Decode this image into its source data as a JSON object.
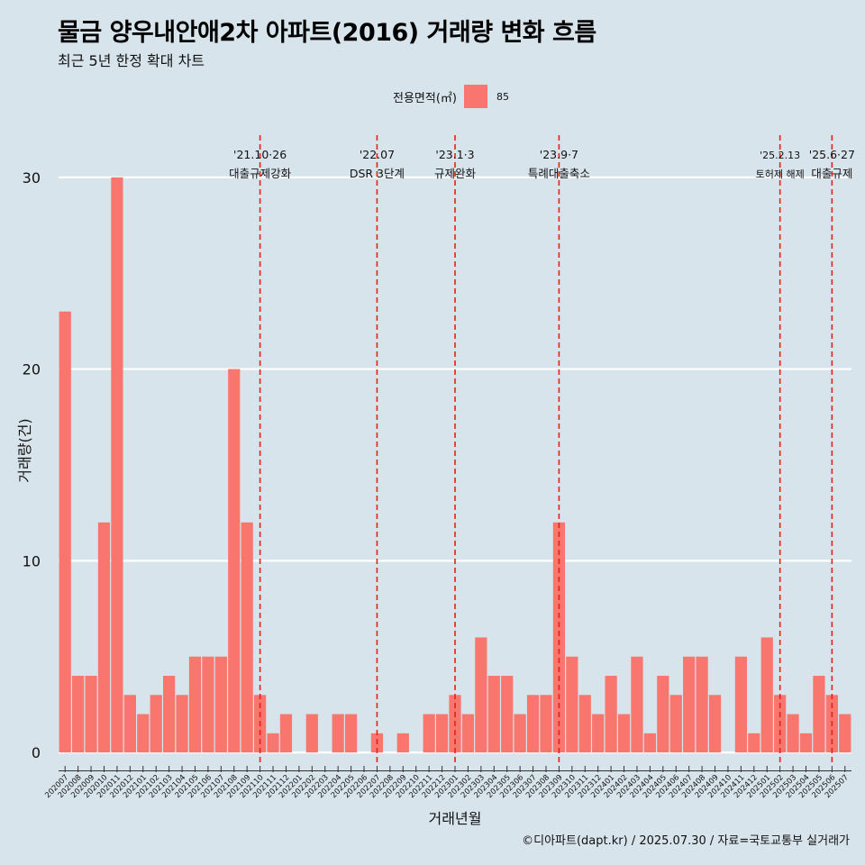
{
  "title": "물금 양우내안애2차 아파트(2016) 거래량 변화 흐름",
  "subtitle": "최근 5년 한정 확대 차트",
  "caption": "©디아파트(dapt.kr) / 2025.07.30 / 자료=국토교통부 실거래가",
  "legend": {
    "title": "전용면적(㎡)",
    "label": "85"
  },
  "colors": {
    "bar": "#f8766d",
    "background": "#d7e4ec",
    "grid": "#ffffff",
    "event_line": "#e8201a"
  },
  "chart_data": {
    "type": "bar",
    "xlabel": "거래년월",
    "ylabel": "거래량(건)",
    "ylim": [
      -0.7,
      32.2
    ],
    "yticks": [
      0,
      10,
      20,
      30
    ],
    "grid": true,
    "legend_position": "top",
    "categories": [
      "202007",
      "202008",
      "202009",
      "202010",
      "202011",
      "202012",
      "202101",
      "202102",
      "202103",
      "202104",
      "202105",
      "202106",
      "202107",
      "202108",
      "202109",
      "202110",
      "202111",
      "202112",
      "202201",
      "202202",
      "202203",
      "202204",
      "202205",
      "202206",
      "202207",
      "202208",
      "202209",
      "202210",
      "202211",
      "202212",
      "202301",
      "202302",
      "202303",
      "202304",
      "202305",
      "202306",
      "202307",
      "202308",
      "202309",
      "202310",
      "202311",
      "202312",
      "202401",
      "202402",
      "202403",
      "202404",
      "202405",
      "202406",
      "202407",
      "202408",
      "202409",
      "202410",
      "202411",
      "202412",
      "202501",
      "202502",
      "202503",
      "202504",
      "202505",
      "202506",
      "202507"
    ],
    "series": [
      {
        "name": "85",
        "values": [
          23,
          4,
          4,
          12,
          30,
          3,
          2,
          3,
          4,
          3,
          5,
          5,
          5,
          20,
          12,
          3,
          1,
          2,
          0,
          2,
          0,
          2,
          2,
          0,
          1,
          0,
          1,
          0,
          2,
          2,
          3,
          2,
          6,
          4,
          4,
          2,
          3,
          3,
          12,
          5,
          3,
          2,
          4,
          2,
          5,
          1,
          4,
          3,
          5,
          5,
          3,
          0,
          5,
          1,
          6,
          3,
          2,
          1,
          4,
          3,
          2
        ]
      }
    ],
    "annotations": [
      {
        "x": "202110",
        "date": "'21.10·26",
        "label": "대출규제강화"
      },
      {
        "x": "202207",
        "date": "'22.07",
        "label": "DSR 3단계"
      },
      {
        "x": "202301",
        "date": "'23.1·3",
        "label": "규제완화"
      },
      {
        "x": "202309",
        "date": "'23.9·7",
        "label": "특례대출축소"
      },
      {
        "x": "202502",
        "date": "'25.2.13",
        "label": "토허제 해제"
      },
      {
        "x": "202506",
        "date": "'25.6·27",
        "label": "대출규제"
      }
    ]
  }
}
